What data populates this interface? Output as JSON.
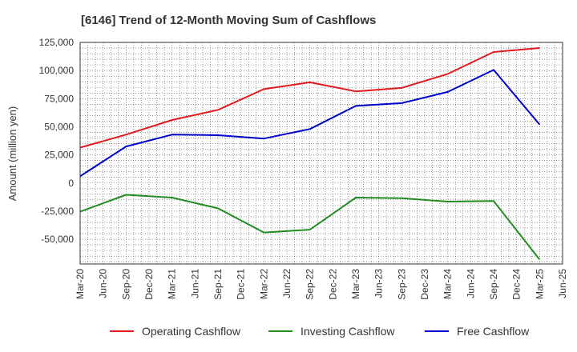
{
  "chart_data": {
    "type": "line",
    "title": "[6146]  Trend of 12-Month Moving Sum of Cashflows",
    "xlabel": "",
    "ylabel": "Amount (million yen)",
    "ylim": [
      -72000,
      125000
    ],
    "y_ticks": [
      125000,
      100000,
      75000,
      50000,
      25000,
      0,
      -25000,
      -50000
    ],
    "y_tick_labels": [
      "125,000",
      "100,000",
      "75,000",
      "50,000",
      "25,000",
      "0",
      "-25,000",
      "-50,000"
    ],
    "categories": [
      "Mar-20",
      "Jun-20",
      "Sep-20",
      "Dec-20",
      "Mar-21",
      "Jun-21",
      "Sep-21",
      "Dec-21",
      "Mar-22",
      "Jun-22",
      "Sep-22",
      "Dec-22",
      "Mar-23",
      "Jun-23",
      "Sep-23",
      "Dec-23",
      "Mar-24",
      "Jun-24",
      "Sep-24",
      "Dec-24",
      "Mar-25",
      "Jun-25"
    ],
    "grid": true,
    "legend_position": "bottom",
    "series": [
      {
        "name": "Operating Cashflow",
        "color": "#e31a1c",
        "points": [
          [
            0,
            31500
          ],
          [
            2,
            43000
          ],
          [
            4,
            56000
          ],
          [
            6,
            65000
          ],
          [
            8,
            83500
          ],
          [
            10,
            89500
          ],
          [
            12,
            81500
          ],
          [
            14,
            84500
          ],
          [
            16,
            97000
          ],
          [
            18,
            116500
          ],
          [
            20,
            120000
          ]
        ]
      },
      {
        "name": "Investing Cashflow",
        "color": "#228b22",
        "points": [
          [
            0,
            -25500
          ],
          [
            2,
            -10500
          ],
          [
            4,
            -13000
          ],
          [
            6,
            -22500
          ],
          [
            8,
            -44000
          ],
          [
            10,
            -41500
          ],
          [
            12,
            -13000
          ],
          [
            14,
            -13500
          ],
          [
            16,
            -16500
          ],
          [
            18,
            -16000
          ],
          [
            20,
            -68000
          ]
        ]
      },
      {
        "name": "Free Cashflow",
        "color": "#0000cc",
        "points": [
          [
            0,
            6000
          ],
          [
            2,
            32500
          ],
          [
            4,
            43000
          ],
          [
            6,
            42500
          ],
          [
            8,
            39500
          ],
          [
            10,
            48000
          ],
          [
            12,
            68500
          ],
          [
            14,
            71000
          ],
          [
            16,
            81000
          ],
          [
            18,
            100500
          ],
          [
            20,
            52000
          ]
        ]
      }
    ]
  }
}
